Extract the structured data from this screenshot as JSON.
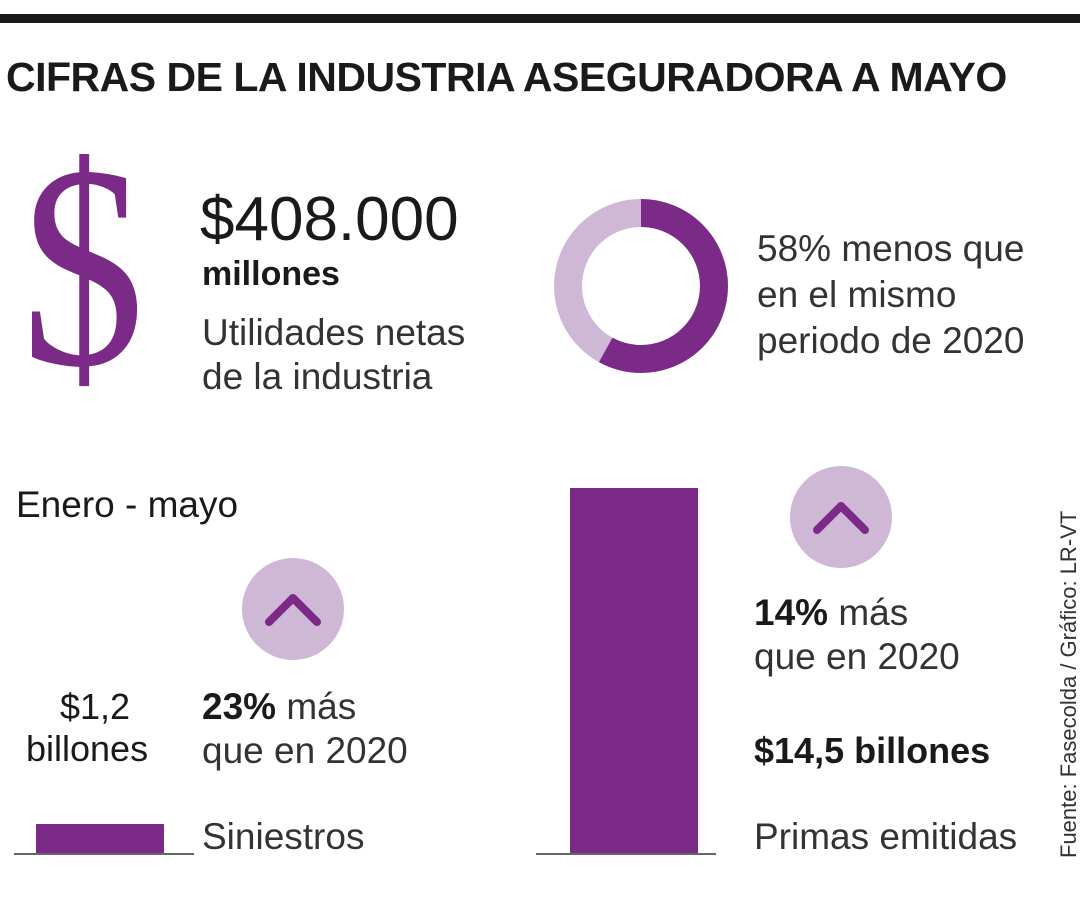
{
  "title": "CIFRAS DE LA INDUSTRIA ASEGURADORA A MAYO",
  "profit": {
    "icon": "dollar-sign-icon",
    "symbol": "$",
    "amount": "$408.000",
    "unit": "millones",
    "desc_line1": "Utilidades netas",
    "desc_line2": "de la industria"
  },
  "decline": {
    "percent": 58,
    "line1": "58% menos que",
    "line2": "en el mismo",
    "line3": "periodo de 2020"
  },
  "period_label": "Enero - mayo",
  "colors": {
    "accent": "#7b2a87",
    "accent_light": "#cfb8d6",
    "text": "#1a1a1a"
  },
  "chart_data": {
    "type": "bar",
    "categories": [
      "Siniestros",
      "Primas emitidas"
    ],
    "values": [
      1.2,
      14.5
    ],
    "unit": "billones",
    "value_labels": [
      {
        "line1": "$1,2",
        "line2": "billones"
      },
      {
        "line1": "$14,5 billones"
      }
    ],
    "changes": [
      {
        "pct": "23%",
        "rest": " más",
        "line2": "que en 2020",
        "direction": "up",
        "icon": "chevron-up-icon"
      },
      {
        "pct": "14%",
        "rest": " más",
        "line2": "que en 2020",
        "direction": "up",
        "icon": "chevron-up-icon"
      }
    ]
  },
  "source": "Fuente: Fasecolda  / Gráfico: LR-VT"
}
